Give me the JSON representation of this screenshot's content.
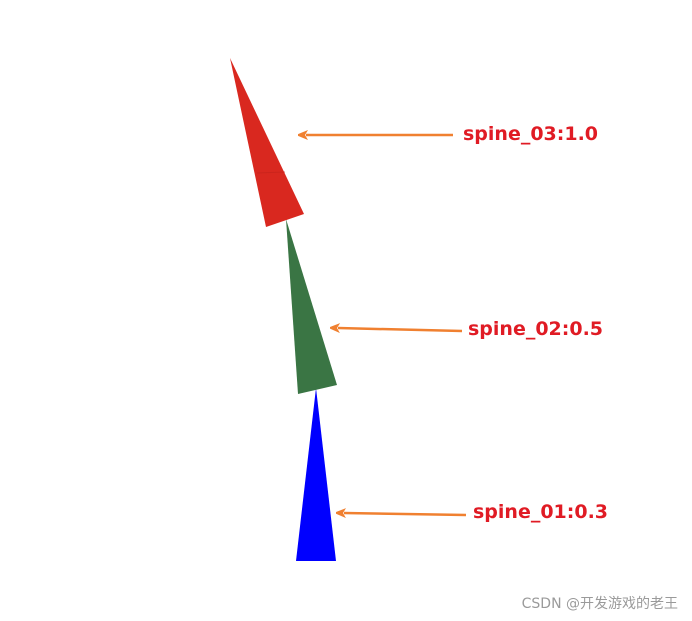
{
  "colors": {
    "spine_01": "#0000ff",
    "spine_02": "#3a7544",
    "spine_03": "#d9281f",
    "arrow": "#f08030",
    "label": "#e01b24"
  },
  "spines": [
    {
      "id": "spine_01",
      "label": "spine_01:0.3",
      "weight": 0.3
    },
    {
      "id": "spine_02",
      "label": "spine_02:0.5",
      "weight": 0.5
    },
    {
      "id": "spine_03",
      "label": "spine_03:1.0",
      "weight": 1.0
    }
  ],
  "watermark": "CSDN @开发游戏的老王"
}
